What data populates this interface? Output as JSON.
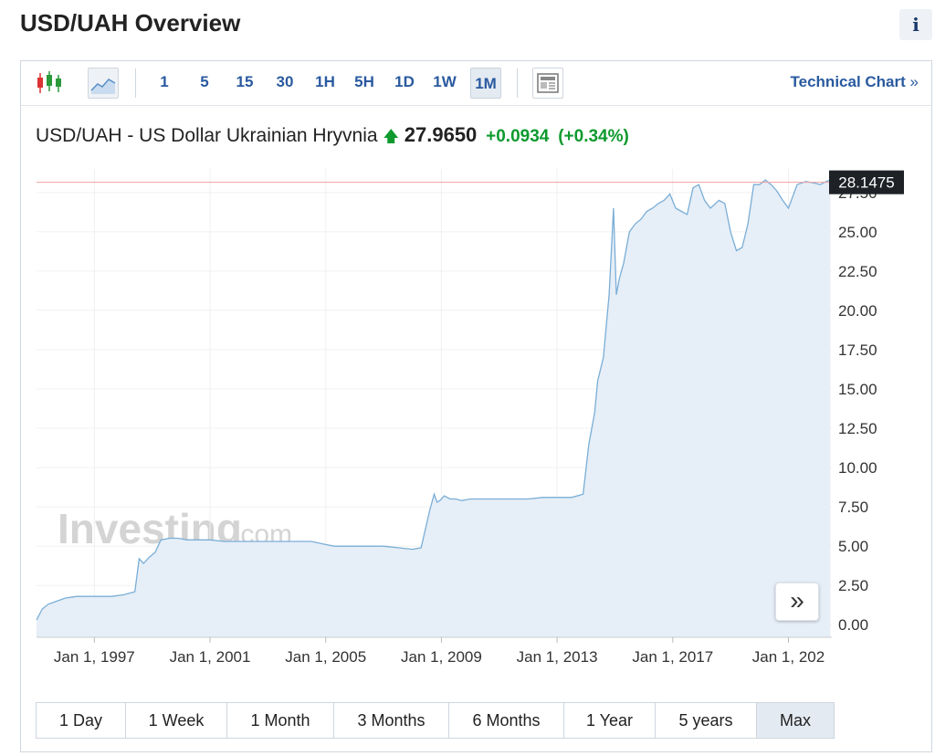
{
  "page": {
    "title": "USD/UAH Overview",
    "info_label": "i"
  },
  "toolbar": {
    "intervals": [
      "1",
      "5",
      "15",
      "30",
      "1H",
      "5H",
      "1D",
      "1W",
      "1M"
    ],
    "active_interval": "1M",
    "technical_chart_label": "Technical Chart",
    "technical_chart_arrow": "»",
    "icons": [
      "candlestick-icon",
      "line-chart-icon",
      "news-icon"
    ]
  },
  "quote": {
    "name": "USD/UAH - US Dollar Ukrainian Hryvnia",
    "direction_arrow": "🡅",
    "price": "27.9650",
    "change": "+0.0934",
    "change_pct": "(+0.34%)"
  },
  "ranges": [
    "1 Day",
    "1 Week",
    "1 Month",
    "3 Months",
    "6 Months",
    "1 Year",
    "5 years",
    "Max"
  ],
  "selected_range": "Max",
  "watermark": {
    "brand": "Investing",
    "suffix": ".com"
  },
  "colors": {
    "accent": "#2a5aa0",
    "up": "#0e9a2e",
    "line": "#7aaed6",
    "area": "#e6eef7",
    "price_line": "#f2a0a0"
  },
  "chart_data": {
    "type": "area",
    "title": "",
    "xlabel": "",
    "ylabel": "",
    "ylim": [
      -0.8,
      29
    ],
    "y_ticks": [
      0,
      2.5,
      5,
      7.5,
      10,
      12.5,
      15,
      17.5,
      20,
      22.5,
      25,
      27.5
    ],
    "y_tick_labels": [
      "0.00",
      "2.50",
      "5.00",
      "7.50",
      "10.00",
      "12.50",
      "15.00",
      "17.50",
      "20.00",
      "22.50",
      "25.00",
      "27.50"
    ],
    "x_range": [
      1995.0,
      2022.5
    ],
    "x_ticks": [
      1997,
      2001,
      2005,
      2009,
      2013,
      2017,
      2021
    ],
    "x_tick_labels": [
      "Jan 1, 1997",
      "Jan 1, 2001",
      "Jan 1, 2005",
      "Jan 1, 2009",
      "Jan 1, 2013",
      "Jan 1, 2017",
      "Jan 1, 202"
    ],
    "current_price_label": "28.1475",
    "current_price": 28.1475,
    "grid": true,
    "series": [
      {
        "x": [
          1995.0,
          1995.2,
          1995.4,
          1995.7,
          1996.0,
          1996.4,
          1996.8,
          1997.2,
          1997.6,
          1998.0,
          1998.4,
          1998.55,
          1998.7,
          1998.9,
          1999.1,
          1999.3,
          1999.6,
          1999.9,
          2000.2,
          2000.6,
          2001.0,
          2001.5,
          2002.0,
          2002.5,
          2003.0,
          2003.5,
          2004.0,
          2004.5,
          2005.0,
          2005.3,
          2005.6,
          2006.0,
          2006.5,
          2007.0,
          2007.5,
          2008.0,
          2008.3,
          2008.6,
          2008.75,
          2008.85,
          2008.95,
          2009.1,
          2009.3,
          2009.5,
          2009.7,
          2010.0,
          2010.5,
          2011.0,
          2011.5,
          2012.0,
          2012.5,
          2013.0,
          2013.5,
          2013.9,
          2014.1,
          2014.2,
          2014.3,
          2014.4,
          2014.6,
          2014.8,
          2014.95,
          2015.05,
          2015.15,
          2015.3,
          2015.5,
          2015.7,
          2015.9,
          2016.1,
          2016.3,
          2016.5,
          2016.7,
          2016.9,
          2017.1,
          2017.3,
          2017.5,
          2017.7,
          2017.9,
          2018.1,
          2018.3,
          2018.6,
          2018.8,
          2019.0,
          2019.2,
          2019.4,
          2019.6,
          2019.8,
          2020.0,
          2020.2,
          2020.4,
          2020.6,
          2020.8,
          2021.0,
          2021.3,
          2021.6,
          2021.9,
          2022.1,
          2022.3,
          2022.45
        ],
        "values": [
          0.3,
          1.0,
          1.3,
          1.5,
          1.7,
          1.8,
          1.8,
          1.8,
          1.8,
          1.9,
          2.1,
          4.2,
          3.9,
          4.3,
          4.6,
          5.4,
          5.5,
          5.5,
          5.4,
          5.4,
          5.4,
          5.3,
          5.3,
          5.3,
          5.3,
          5.3,
          5.3,
          5.3,
          5.1,
          5.0,
          5.0,
          5.0,
          5.0,
          5.0,
          4.9,
          4.8,
          4.9,
          7.3,
          8.3,
          7.8,
          7.9,
          8.2,
          8.0,
          8.0,
          7.9,
          8.0,
          8.0,
          8.0,
          8.0,
          8.0,
          8.1,
          8.1,
          8.1,
          8.3,
          11.5,
          12.5,
          13.5,
          15.5,
          17.0,
          21.0,
          26.5,
          21.0,
          22.0,
          23.0,
          25.0,
          25.5,
          25.8,
          26.3,
          26.5,
          26.8,
          27.0,
          27.4,
          26.5,
          26.3,
          26.1,
          27.8,
          28.0,
          27.0,
          26.5,
          27.0,
          26.8,
          25.0,
          23.8,
          24.0,
          25.5,
          28.0,
          28.0,
          28.3,
          28.0,
          27.6,
          27.0,
          26.5,
          28.0,
          28.2,
          28.1,
          28.0,
          28.2,
          28.3
        ]
      }
    ]
  }
}
